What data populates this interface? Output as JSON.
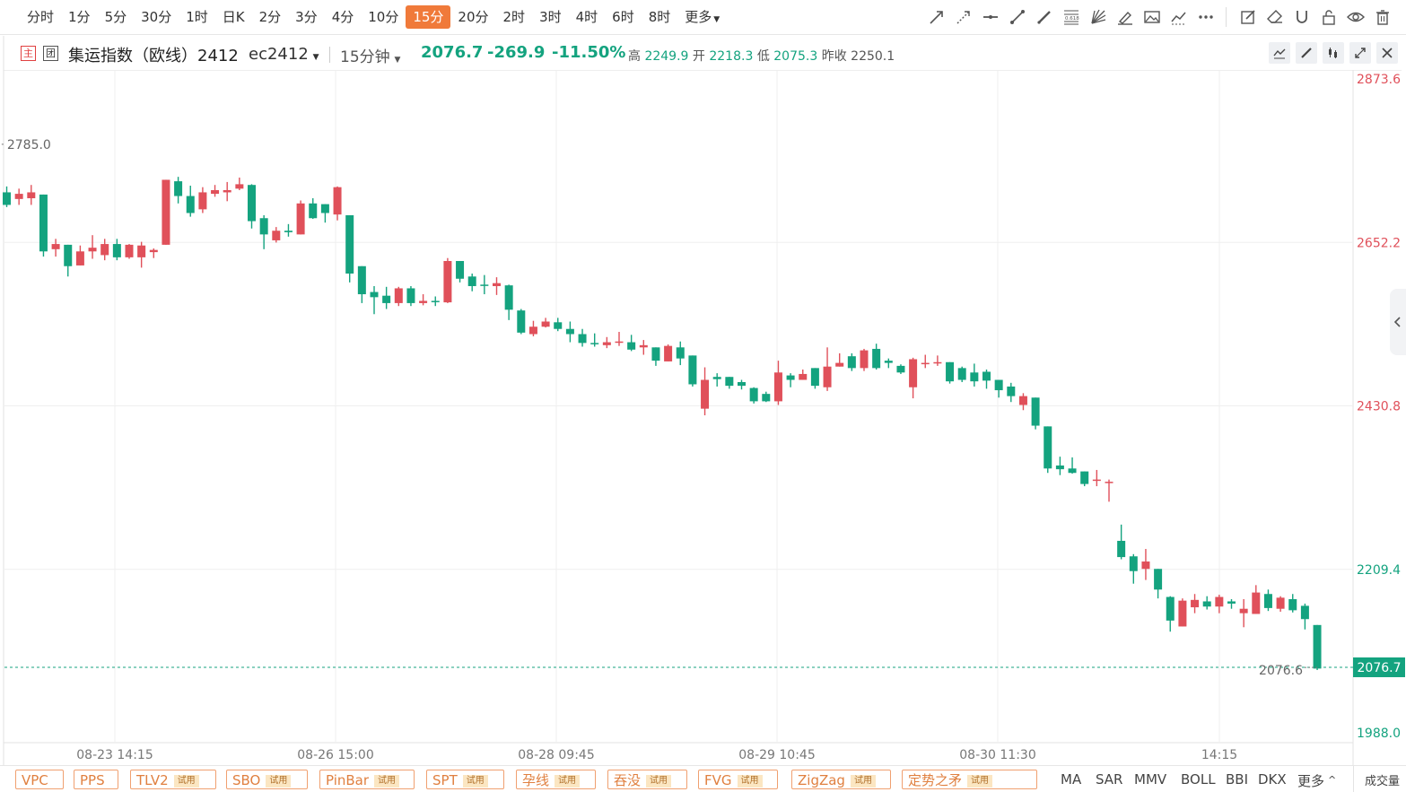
{
  "toolbar": {
    "periods": [
      "分时",
      "1分",
      "5分",
      "30分",
      "1时",
      "日K",
      "2分",
      "3分",
      "4分",
      "10分",
      "15分",
      "20分",
      "2时",
      "3时",
      "4时",
      "6时",
      "8时",
      "更多"
    ],
    "active_period": "15分",
    "tools": [
      "ray-line-icon",
      "dashed-arrow-icon",
      "horizontal-line-icon",
      "segment-icon",
      "pen-icon",
      "fibonacci-icon",
      "fan-icon",
      "highlighter-icon",
      "image-icon",
      "trend-icon",
      "more-dots-icon",
      "edit-icon",
      "eraser-icon",
      "magnet-icon",
      "lock-icon",
      "eye-icon",
      "trash-icon"
    ],
    "fib_label": "0.618"
  },
  "info": {
    "badge_main": "主",
    "badge_group": "团",
    "title": "集运指数（欧线）2412",
    "code": "ec2412",
    "period": "15分钟",
    "price": "2076.7",
    "change": "-269.9",
    "change_pct": "-11.50%",
    "high_label": "高",
    "high": "2249.9",
    "open_label": "开",
    "open": "2218.3",
    "low_label": "低",
    "low": "2075.3",
    "prev_label": "昨收",
    "prev_close": "2250.1"
  },
  "colors": {
    "up": "#e0505a",
    "down": "#14a37f",
    "accent": "#f07a3a",
    "axis_text": "#555"
  },
  "chart_data": {
    "type": "candlestick",
    "ylim": [
      1988.0,
      2873.6
    ],
    "price_ticks": [
      "2873.6",
      "2652.2",
      "2430.8",
      "2209.4",
      "1988.0"
    ],
    "x_labels": [
      "08-23 14:15",
      "08-26 15:00",
      "08-28 09:45",
      "08-29 10:45",
      "08-30 11:30",
      "14:15"
    ],
    "max_annotation": "2785.0",
    "min_annotation": "2076.6",
    "last_price": "2076.7",
    "candles": [
      [
        2720,
        2703,
        2728,
        2700
      ],
      [
        2711,
        2718,
        2725,
        2703
      ],
      [
        2712,
        2720,
        2730,
        2703
      ],
      [
        2717,
        2640,
        2717,
        2633
      ],
      [
        2643,
        2650,
        2657,
        2633
      ],
      [
        2649,
        2620,
        2649,
        2606
      ],
      [
        2621,
        2640,
        2648,
        2621
      ],
      [
        2640,
        2645,
        2662,
        2630
      ],
      [
        2635,
        2650,
        2657,
        2628
      ],
      [
        2650,
        2632,
        2657,
        2628
      ],
      [
        2632,
        2649,
        2650,
        2630
      ],
      [
        2632,
        2648,
        2653,
        2618
      ],
      [
        2639,
        2642,
        2644,
        2631
      ],
      [
        2649,
        2737,
        2737,
        2649
      ],
      [
        2735,
        2715,
        2741,
        2705
      ],
      [
        2715,
        2692,
        2729,
        2687
      ],
      [
        2697,
        2720,
        2727,
        2692
      ],
      [
        2718,
        2723,
        2730,
        2714
      ],
      [
        2720,
        2723,
        2734,
        2708
      ],
      [
        2725,
        2731,
        2740,
        2723
      ],
      [
        2730,
        2681,
        2731,
        2671
      ],
      [
        2685,
        2663,
        2689,
        2643
      ],
      [
        2655,
        2668,
        2673,
        2652
      ],
      [
        2668,
        2666,
        2677,
        2660
      ],
      [
        2663,
        2705,
        2709,
        2663
      ],
      [
        2705,
        2685,
        2712,
        2684
      ],
      [
        2704,
        2692,
        2704,
        2679
      ],
      [
        2690,
        2727,
        2728,
        2682
      ],
      [
        2689,
        2610,
        2689,
        2598
      ],
      [
        2620,
        2582,
        2620,
        2570
      ],
      [
        2585,
        2578,
        2593,
        2555
      ],
      [
        2580,
        2570,
        2592,
        2562
      ],
      [
        2570,
        2590,
        2592,
        2566
      ],
      [
        2590,
        2570,
        2593,
        2566
      ],
      [
        2570,
        2573,
        2582,
        2567
      ],
      [
        2573,
        2572,
        2579,
        2566
      ],
      [
        2571,
        2627,
        2631,
        2570
      ],
      [
        2627,
        2603,
        2627,
        2598
      ],
      [
        2606,
        2593,
        2610,
        2586
      ],
      [
        2595,
        2594,
        2608,
        2582
      ],
      [
        2593,
        2597,
        2605,
        2581
      ],
      [
        2594,
        2561,
        2595,
        2547
      ],
      [
        2560,
        2530,
        2562,
        2528
      ],
      [
        2528,
        2538,
        2546,
        2525
      ],
      [
        2538,
        2545,
        2550,
        2537
      ],
      [
        2544,
        2535,
        2550,
        2532
      ],
      [
        2535,
        2528,
        2545,
        2517
      ],
      [
        2528,
        2516,
        2535,
        2511
      ],
      [
        2516,
        2515,
        2529,
        2511
      ],
      [
        2513,
        2517,
        2524,
        2509
      ],
      [
        2517,
        2518,
        2531,
        2512
      ],
      [
        2517,
        2507,
        2527,
        2505
      ],
      [
        2510,
        2513,
        2520,
        2500
      ],
      [
        2510,
        2492,
        2510,
        2485
      ],
      [
        2491,
        2512,
        2514,
        2491
      ],
      [
        2510,
        2495,
        2518,
        2486
      ],
      [
        2499,
        2460,
        2499,
        2457
      ],
      [
        2427,
        2466,
        2483,
        2418
      ],
      [
        2470,
        2467,
        2475,
        2457
      ],
      [
        2470,
        2458,
        2470,
        2454
      ],
      [
        2463,
        2458,
        2466,
        2453
      ],
      [
        2455,
        2437,
        2456,
        2434
      ],
      [
        2447,
        2437,
        2450,
        2436
      ],
      [
        2437,
        2476,
        2492,
        2432
      ],
      [
        2472,
        2466,
        2475,
        2456
      ],
      [
        2466,
        2474,
        2480,
        2466
      ],
      [
        2482,
        2458,
        2482,
        2454
      ],
      [
        2456,
        2484,
        2510,
        2451
      ],
      [
        2484,
        2489,
        2502,
        2484
      ],
      [
        2498,
        2482,
        2502,
        2478
      ],
      [
        2482,
        2506,
        2508,
        2478
      ],
      [
        2508,
        2482,
        2515,
        2480
      ],
      [
        2492,
        2489,
        2495,
        2482
      ],
      [
        2485,
        2476,
        2487,
        2474
      ],
      [
        2456,
        2494,
        2496,
        2441
      ],
      [
        2489,
        2489,
        2500,
        2482
      ],
      [
        2490,
        2490,
        2499,
        2485
      ],
      [
        2490,
        2464,
        2490,
        2461
      ],
      [
        2482,
        2466,
        2484,
        2463
      ],
      [
        2476,
        2464,
        2488,
        2457
      ],
      [
        2477,
        2465,
        2480,
        2454
      ],
      [
        2466,
        2452,
        2466,
        2442
      ],
      [
        2457,
        2444,
        2462,
        2436
      ],
      [
        2432,
        2444,
        2448,
        2425
      ],
      [
        2442,
        2404,
        2442,
        2399
      ],
      [
        2403,
        2346,
        2403,
        2340
      ],
      [
        2350,
        2345,
        2362,
        2337
      ],
      [
        2346,
        2340,
        2361,
        2339
      ],
      [
        2342,
        2325,
        2342,
        2322
      ],
      [
        2331,
        2331,
        2344,
        2322
      ],
      [
        2328,
        2328,
        2331,
        2301
      ],
      [
        2248,
        2226,
        2270,
        2223
      ],
      [
        2227,
        2207,
        2230,
        2190
      ],
      [
        2210,
        2220,
        2237,
        2195
      ],
      [
        2210,
        2182,
        2210,
        2170
      ],
      [
        2172,
        2140,
        2173,
        2125
      ],
      [
        2132,
        2167,
        2170,
        2132
      ],
      [
        2158,
        2168,
        2176,
        2150
      ],
      [
        2166,
        2159,
        2173,
        2155
      ],
      [
        2159,
        2172,
        2175,
        2150
      ],
      [
        2166,
        2163,
        2169,
        2156
      ],
      [
        2150,
        2156,
        2169,
        2131
      ],
      [
        2149,
        2178,
        2188,
        2149
      ],
      [
        2176,
        2157,
        2182,
        2153
      ],
      [
        2156,
        2171,
        2173,
        2152
      ],
      [
        2169,
        2154,
        2176,
        2151
      ],
      [
        2160,
        2142,
        2163,
        2128
      ],
      [
        2134,
        2075,
        2134,
        2073
      ]
    ]
  },
  "bottom": {
    "indicators": [
      {
        "name": "VPC",
        "trial": ""
      },
      {
        "name": "PPS",
        "trial": ""
      },
      {
        "name": "TLV2",
        "trial": "试用"
      },
      {
        "name": "SBO",
        "trial": "试用"
      },
      {
        "name": "PinBar",
        "trial": "试用"
      },
      {
        "name": "SPT",
        "trial": "试用"
      },
      {
        "name": "孕线",
        "trial": "试用"
      },
      {
        "name": "吞没",
        "trial": "试用"
      },
      {
        "name": "FVG",
        "trial": "试用"
      },
      {
        "name": "ZigZag",
        "trial": "试用"
      },
      {
        "name": "定势之矛",
        "trial": "试用"
      }
    ],
    "main_indicators": [
      "MA",
      "SAR",
      "MMV",
      "BOLL",
      "BBI",
      "DKX",
      "更多"
    ],
    "volume_label": "成交量"
  }
}
